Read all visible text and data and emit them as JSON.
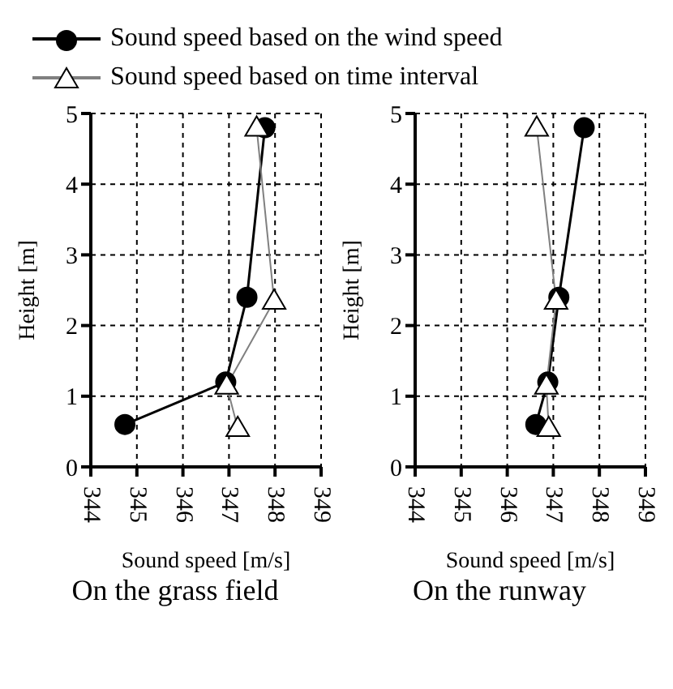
{
  "chart_data": [
    {
      "type": "line",
      "title": "On the grass field",
      "xlabel": "Sound speed [m/s]",
      "ylabel": "Height [m]",
      "xlim": [
        344,
        349
      ],
      "xticks": [
        344,
        345,
        346,
        347,
        348,
        349
      ],
      "ylim": [
        0,
        5
      ],
      "yticks": [
        0,
        1,
        2,
        3,
        4,
        5
      ],
      "grid": true,
      "legend": "top",
      "line_style": "solid",
      "series": [
        {
          "name": "Sound speed based on the wind speed",
          "color": "#000000",
          "marker": "circle",
          "x": [
            344.74,
            346.93,
            347.39,
            347.78
          ],
          "values": [
            0.6,
            1.2,
            2.4,
            4.8
          ]
        },
        {
          "name": "Sound speed based on time interval",
          "color": "#808080",
          "marker": "triangle",
          "x": [
            347.19,
            346.95,
            347.98,
            347.6
          ],
          "values": [
            0.55,
            1.15,
            2.35,
            4.8
          ]
        }
      ]
    },
    {
      "type": "line",
      "title": "On the runway",
      "xlabel": "Sound speed [m/s]",
      "ylabel": "Height [m]",
      "xlim": [
        344,
        349
      ],
      "xticks": [
        344,
        345,
        346,
        347,
        348,
        349
      ],
      "ylim": [
        0,
        5
      ],
      "yticks": [
        0,
        1,
        2,
        3,
        4,
        5
      ],
      "grid": true,
      "line_style": "solid",
      "series": [
        {
          "color": "#000000",
          "marker": "circle",
          "x": [
            346.62,
            346.88,
            347.12,
            347.67
          ],
          "values": [
            0.6,
            1.2,
            2.4,
            4.8
          ]
        },
        {
          "color": "#808080",
          "marker": "triangle",
          "x": [
            346.9,
            346.85,
            347.06,
            346.64
          ],
          "values": [
            0.55,
            1.15,
            2.35,
            4.8
          ]
        }
      ]
    }
  ]
}
